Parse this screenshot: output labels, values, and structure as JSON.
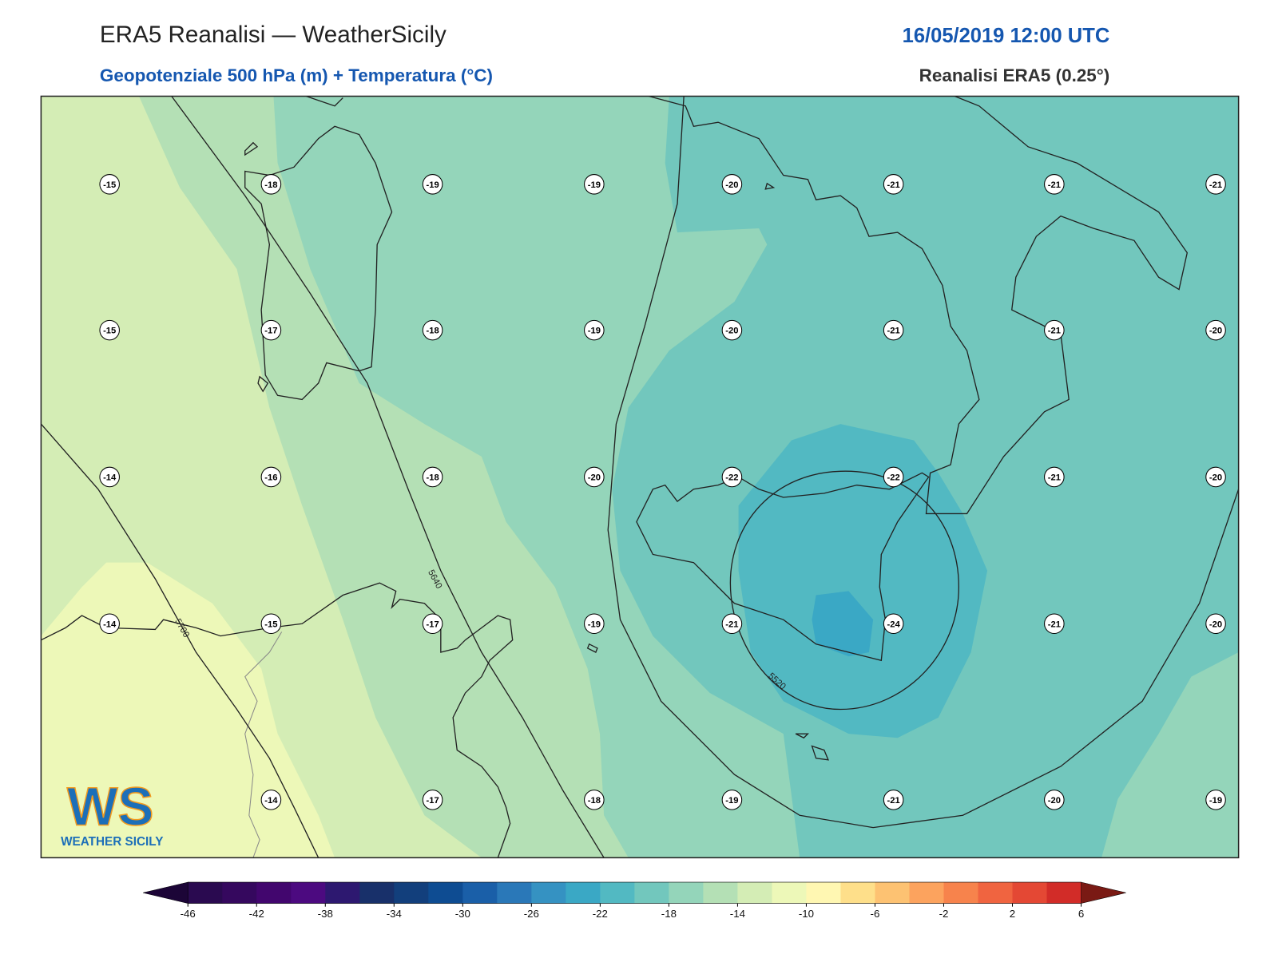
{
  "header": {
    "title": "ERA5 Reanalisi — WeatherSicily",
    "datetime": "16/05/2019 12:00 UTC",
    "subtitle": "Geopotenziale 500 hPa (m) + Temperatura (°C)",
    "source": "Reanalisi ERA5 (0.25°)"
  },
  "temperature_labels": [
    [
      -15,
      -18,
      -19,
      -19,
      -20,
      -21,
      -21,
      -21
    ],
    [
      -15,
      -17,
      -18,
      -19,
      -20,
      -21,
      -21,
      -20
    ],
    [
      -14,
      -16,
      -18,
      -20,
      -22,
      -22,
      -21,
      -20
    ],
    [
      -14,
      -15,
      -17,
      -19,
      -21,
      -24,
      -21,
      -20
    ],
    [
      null,
      -14,
      -17,
      -18,
      -19,
      -21,
      -20,
      -19
    ]
  ],
  "contour_labels": [
    "5640",
    "5700",
    "5520"
  ],
  "logo": {
    "mark": "WS",
    "name": "WEATHER SICILY"
  },
  "colorbar": {
    "lim": [
      -46,
      6
    ],
    "ticks": [
      -46,
      -42,
      -38,
      -34,
      -30,
      -26,
      -22,
      -18,
      -14,
      -10,
      -6,
      -2,
      2,
      6
    ],
    "under_color": "#1c0537",
    "over_color": "#7a1a14",
    "colors": [
      "#2a0a50",
      "#35085e",
      "#42066e",
      "#4c0a80",
      "#2d1870",
      "#18306a",
      "#123f7c",
      "#0e4c92",
      "#1a5fa8",
      "#2a78b8",
      "#3592c2",
      "#3aa8c5",
      "#52b9c2",
      "#72c7bd",
      "#94d5ba",
      "#b4e0b5",
      "#d4edb5",
      "#edf8b8",
      "#fff7b2",
      "#fedf8a",
      "#fdc272",
      "#fca35e",
      "#f7834c",
      "#f06440",
      "#e44834",
      "#d22c28"
    ]
  }
}
